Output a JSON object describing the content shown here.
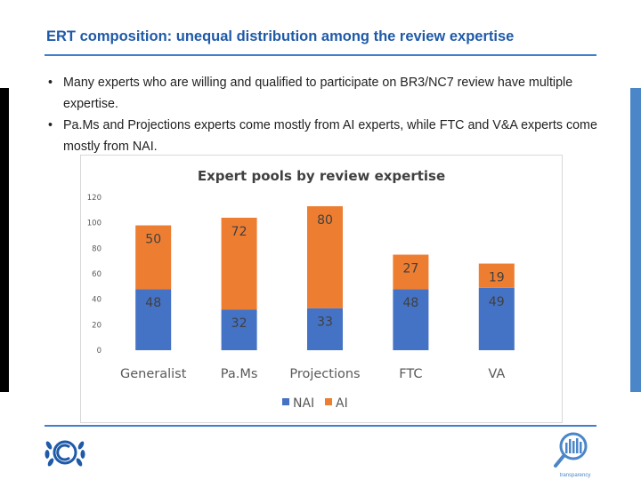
{
  "slide": {
    "title": "ERT composition: unequal distribution among the review expertise",
    "bullets": [
      "Many experts who are willing and qualified to participate on BR3/NC7 review have multiple expertise.",
      "Pa.Ms and Projections experts come mostly from AI experts, while FTC and V&A experts come mostly from NAI."
    ],
    "bullet_symbol": "•",
    "footer_logo_text": "transparency"
  },
  "colors": {
    "title": "#1f5aa8",
    "accent_rule": "#3f7fcc",
    "nai": "#4472c4",
    "ai": "#ed7d31"
  },
  "chart_data": {
    "type": "bar",
    "stacked": true,
    "title": "Expert pools by review expertise",
    "categories": [
      "Generalist",
      "Pa.Ms",
      "Projections",
      "FTC",
      "VA"
    ],
    "series": [
      {
        "name": "NAI",
        "color": "#4472c4",
        "values": [
          48,
          32,
          33,
          48,
          49
        ]
      },
      {
        "name": "AI",
        "color": "#ed7d31",
        "values": [
          50,
          72,
          80,
          27,
          19
        ]
      }
    ],
    "ylim": [
      0,
      120
    ],
    "yticks": [
      0,
      20,
      40,
      60,
      80,
      100,
      120
    ],
    "grid": false,
    "legend": "bottom"
  }
}
